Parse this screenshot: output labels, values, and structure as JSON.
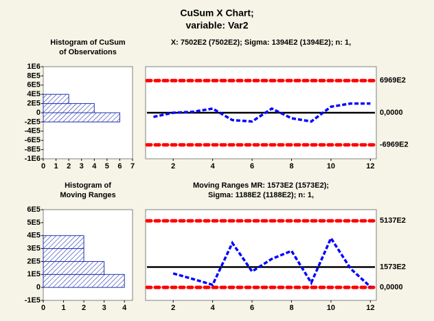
{
  "title": [
    "CuSum X  Chart;",
    "variable:  Var2"
  ],
  "chart_data": [
    {
      "type": "histogram",
      "orientation": "horizontal",
      "title": [
        "Histogram of CuSum",
        "of Observations"
      ],
      "bins": [
        -200000,
        0,
        200000,
        400000
      ],
      "counts": [
        6,
        4,
        2
      ],
      "color": "#1f2fb0",
      "xlim": [
        0,
        7
      ],
      "xticks": [
        0,
        1,
        2,
        3,
        4,
        5,
        6,
        7
      ],
      "ylim": [
        -1000000,
        1000000
      ],
      "yticks": [
        {
          "value": -1000000,
          "label": "-1E6"
        },
        {
          "value": -800000,
          "label": "-8E5"
        },
        {
          "value": -600000,
          "label": "-6E5"
        },
        {
          "value": -400000,
          "label": "-4E5"
        },
        {
          "value": -200000,
          "label": "-2E5"
        },
        0,
        {
          "value": 200000,
          "label": "2E5"
        },
        {
          "value": 400000,
          "label": "4E5"
        },
        {
          "value": 600000,
          "label": "6E5"
        },
        {
          "value": 800000,
          "label": "8E5"
        },
        {
          "value": 1000000,
          "label": "1E6"
        }
      ]
    },
    {
      "type": "line",
      "title": [
        "X: 7502E2 (7502E2); Sigma: 1394E2 (1394E2); n: 1,"
      ],
      "x": [
        1,
        2,
        3,
        4,
        5,
        6,
        7,
        8,
        9,
        10,
        11,
        12
      ],
      "series": [
        {
          "color": "#0000ff",
          "values": [
            -90000,
            0,
            20000,
            90000,
            -160000,
            -190000,
            90000,
            -120000,
            -190000,
            130000,
            200000,
            200000
          ]
        }
      ],
      "limits": [
        {
          "value": 696900,
          "label": "6969E2",
          "color": "#ff0000"
        },
        {
          "value": 0,
          "label": "0,0000",
          "color": "#000000"
        },
        {
          "value": -696900,
          "label": "-6969E2",
          "color": "#ff0000"
        }
      ],
      "xlim": [
        0.6,
        12.3
      ],
      "xticks": [
        2,
        4,
        6,
        8,
        10,
        12
      ],
      "ylim": [
        -1000000,
        1000000
      ]
    },
    {
      "type": "histogram",
      "orientation": "horizontal",
      "title": [
        "Histogram of",
        "Moving Ranges"
      ],
      "bins": [
        0,
        100000,
        200000,
        300000,
        400000
      ],
      "counts": [
        4,
        3,
        2,
        2
      ],
      "color": "#1f2fb0",
      "xlim": [
        0,
        4.4
      ],
      "xticks": [
        0,
        1,
        2,
        3,
        4
      ],
      "ylim": [
        -100000,
        600000
      ],
      "yticks": [
        {
          "value": -100000,
          "label": "-1E5"
        },
        0,
        {
          "value": 100000,
          "label": "1E5"
        },
        {
          "value": 200000,
          "label": "2E5"
        },
        {
          "value": 300000,
          "label": "3E5"
        },
        {
          "value": 400000,
          "label": "4E5"
        },
        {
          "value": 500000,
          "label": "5E5"
        },
        {
          "value": 600000,
          "label": "6E5"
        }
      ]
    },
    {
      "type": "line",
      "title": [
        "Moving Ranges MR: 1573E2 (1573E2);",
        "Sigma: 1188E2 (1188E2); n: 1,"
      ],
      "x": [
        2,
        3,
        4,
        5,
        6,
        7,
        8,
        9,
        10,
        11,
        12
      ],
      "series": [
        {
          "color": "#0000ff",
          "values": [
            108000,
            65000,
            20000,
            343000,
            123000,
            220000,
            282000,
            36000,
            380000,
            144000,
            5000
          ]
        }
      ],
      "limits": [
        {
          "value": 513700,
          "label": "5137E2",
          "color": "#ff0000"
        },
        {
          "value": 157300,
          "label": "1573E2",
          "color": "#000000"
        },
        {
          "value": 0,
          "label": "0,0000",
          "color": "#ff0000"
        }
      ],
      "xlim": [
        0.6,
        12.3
      ],
      "xticks": [
        2,
        4,
        6,
        8,
        10,
        12
      ],
      "ylim": [
        -100000,
        600000
      ]
    }
  ]
}
